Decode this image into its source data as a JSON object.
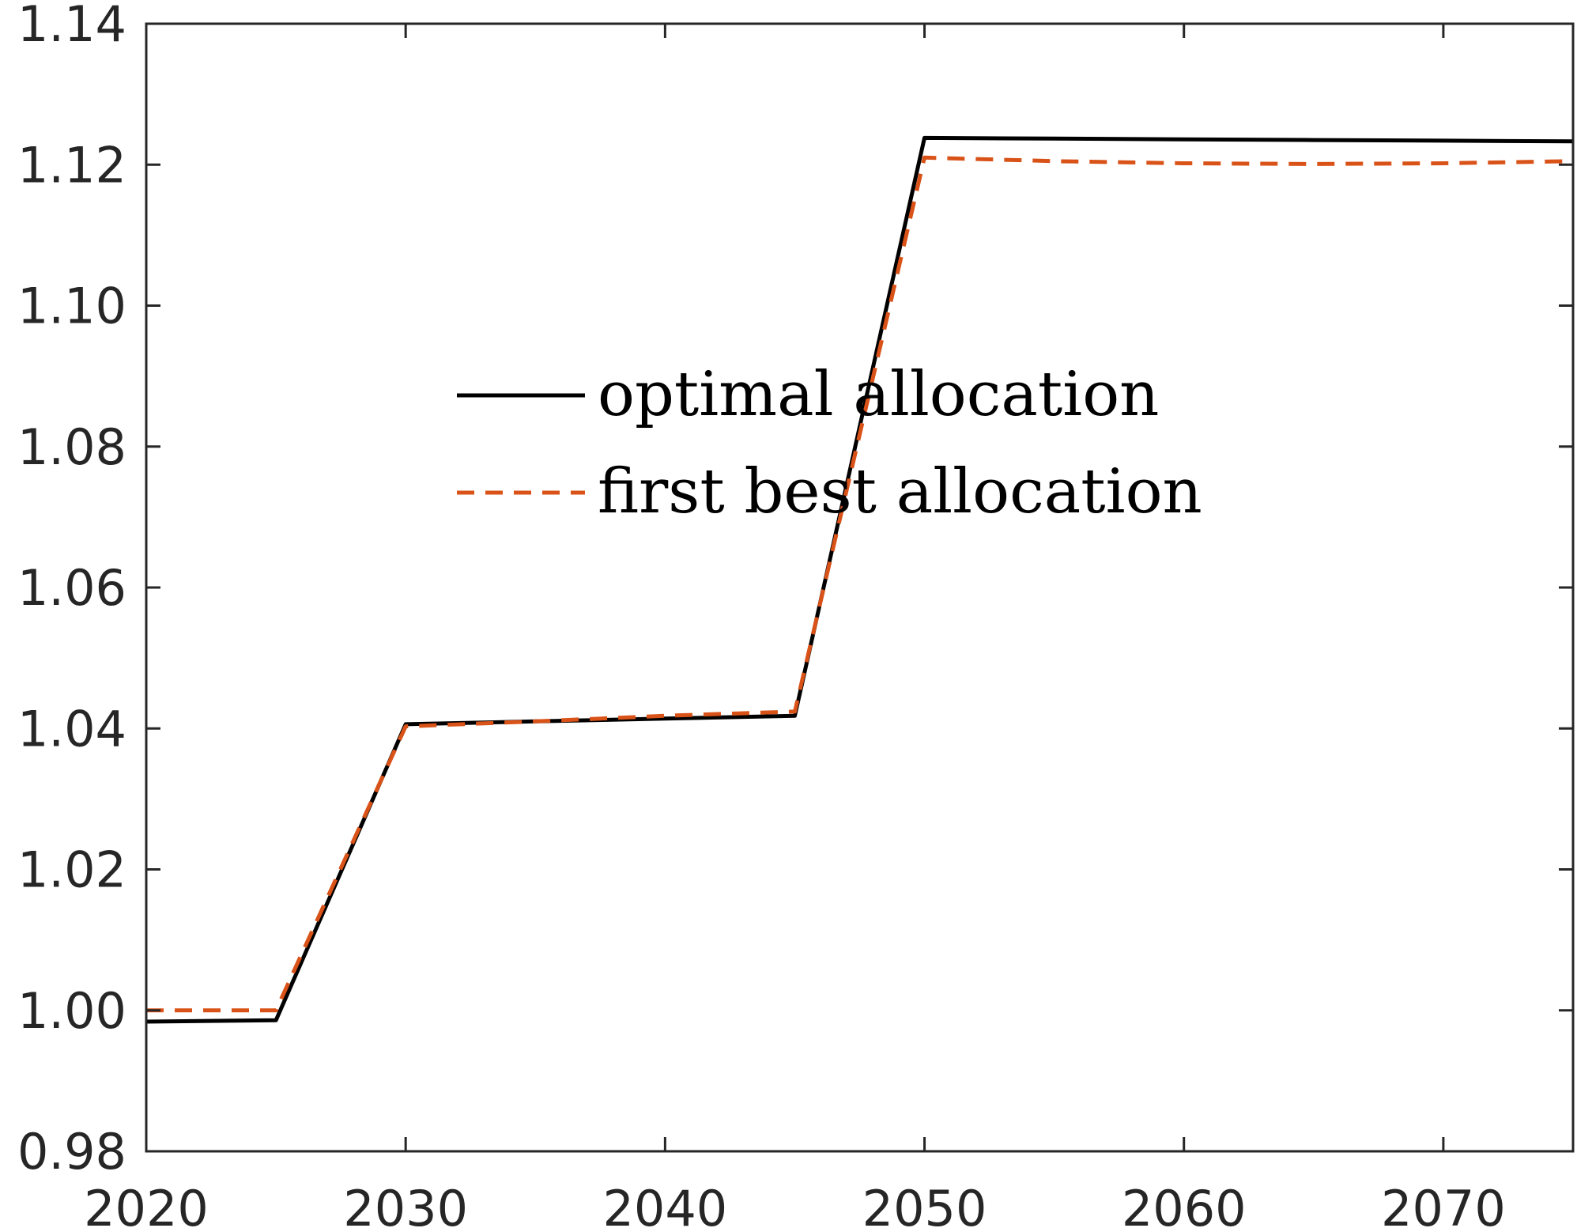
{
  "chart_data": {
    "type": "line",
    "title": "",
    "xlabel": "",
    "ylabel": "",
    "xlim": [
      2020,
      2075
    ],
    "ylim": [
      0.98,
      1.14
    ],
    "x_ticks": [
      "2020",
      "2030",
      "2040",
      "2050",
      "2060",
      "2070"
    ],
    "y_ticks": [
      "0.98",
      "1.00",
      "1.02",
      "1.04",
      "1.06",
      "1.08",
      "1.10",
      "1.12",
      "1.14"
    ],
    "grid": false,
    "legend_position": "center",
    "series": [
      {
        "name": "optimal allocation",
        "style": "solid",
        "color": "#000000",
        "x": [
          2020,
          2025,
          2030,
          2035,
          2040,
          2045,
          2050,
          2055,
          2060,
          2065,
          2070,
          2075
        ],
        "y": [
          0.9984,
          0.9986,
          1.0406,
          1.041,
          1.0414,
          1.0418,
          1.1238,
          1.1237,
          1.1236,
          1.1235,
          1.1234,
          1.1233
        ]
      },
      {
        "name": "first best allocation",
        "style": "dashed",
        "color": "#D95319",
        "x": [
          2020,
          2025,
          2030,
          2035,
          2040,
          2045,
          2050,
          2055,
          2060,
          2065,
          2070,
          2075
        ],
        "y": [
          1.0,
          1.0,
          1.0403,
          1.041,
          1.0418,
          1.0424,
          1.121,
          1.1205,
          1.1202,
          1.1201,
          1.1202,
          1.1205
        ]
      }
    ]
  }
}
